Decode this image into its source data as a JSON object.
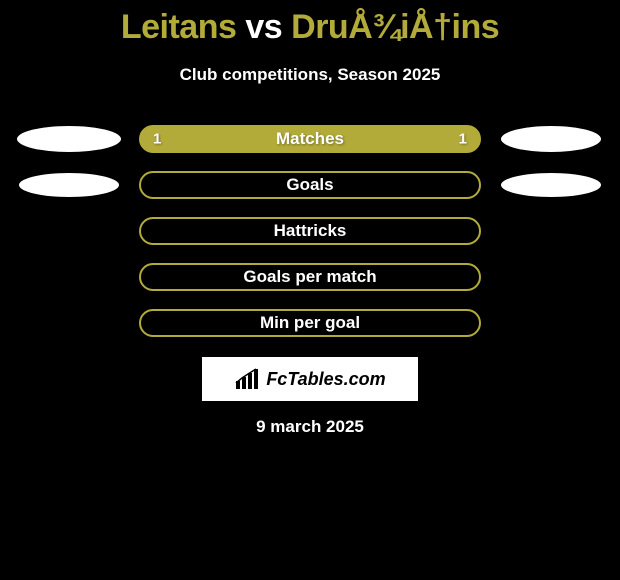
{
  "title": {
    "left": "Leitans",
    "vs": "vs",
    "right": "DruÅ¾iÅ†ins",
    "left_color": "#b2ab3a",
    "right_color": "#b2ab3a",
    "vs_color": "#ffffff"
  },
  "subtitle": "Club competitions, Season 2025",
  "bars": {
    "outer_border_color": "#b2ab3a",
    "fill_left_color": "#b2ab3a",
    "fill_right_color": "#b2ab3a",
    "label_color": "#ffffff",
    "value_color": "#ffffff",
    "rows": [
      {
        "label": "Matches",
        "left_value": "1",
        "right_value": "1",
        "left_pct": 50,
        "right_pct": 50,
        "show_left_ellipse": true,
        "show_right_ellipse": true
      },
      {
        "label": "Goals",
        "left_value": "",
        "right_value": "",
        "left_pct": 50,
        "right_pct": 50,
        "show_left_ellipse": true,
        "show_right_ellipse": true,
        "hollow": true
      },
      {
        "label": "Hattricks",
        "left_value": "",
        "right_value": "",
        "left_pct": 50,
        "right_pct": 50,
        "show_left_ellipse": false,
        "show_right_ellipse": false,
        "hollow": true
      },
      {
        "label": "Goals per match",
        "left_value": "",
        "right_value": "",
        "left_pct": 50,
        "right_pct": 50,
        "show_left_ellipse": false,
        "show_right_ellipse": false,
        "hollow": true
      },
      {
        "label": "Min per goal",
        "left_value": "",
        "right_value": "",
        "left_pct": 50,
        "right_pct": 50,
        "show_left_ellipse": false,
        "show_right_ellipse": false,
        "hollow": true
      }
    ]
  },
  "brand": {
    "text": "FcTables.com",
    "box_bg": "#ffffff",
    "text_color": "#000000",
    "icon_color": "#000000"
  },
  "date": "9 march 2025"
}
